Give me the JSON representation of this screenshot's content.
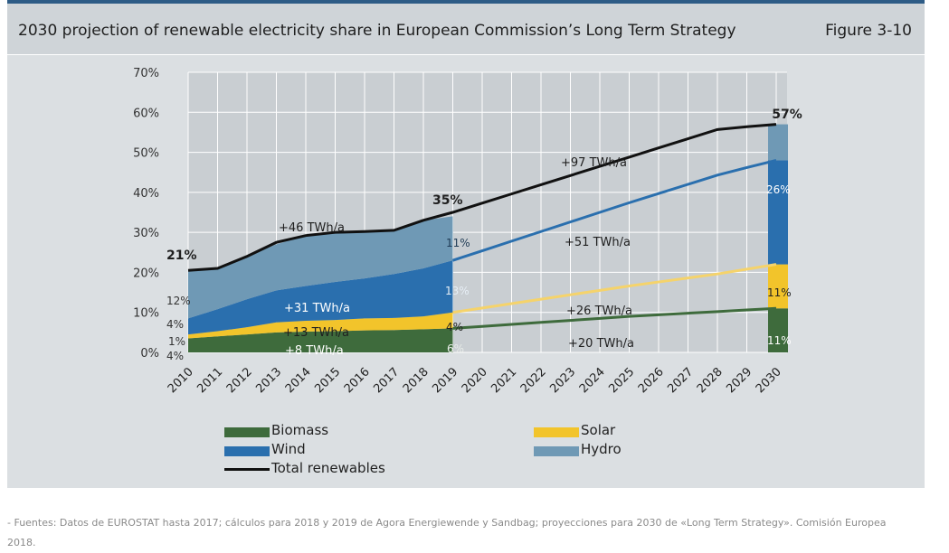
{
  "header": {
    "title": "2030 projection of renewable electricity share in European Commission’s Long Term Strategy",
    "figure": "Figure 3-10"
  },
  "colors": {
    "biomass": "#3e6b3c",
    "solar": "#f2c42b",
    "wind": "#2a6fae",
    "hydro": "#6f99b5",
    "total": "#111111",
    "wind_projection": "#2a6fae",
    "solar_projection": "#f5d36b",
    "biomass_projection": "#3e6b3c"
  },
  "chart_data": {
    "type": "area",
    "x": [
      "2010",
      "2011",
      "2012",
      "2013",
      "2014",
      "2015",
      "2016",
      "2017",
      "2018",
      "2019",
      "2020",
      "2021",
      "2022",
      "2023",
      "2024",
      "2025",
      "2026",
      "2027",
      "2028",
      "2029",
      "2030"
    ],
    "ylim": [
      0,
      70
    ],
    "yticks": [
      "0%",
      "10%",
      "20%",
      "30%",
      "40%",
      "50%",
      "60%",
      "70%"
    ],
    "grid": true,
    "legend_position": "bottom",
    "series": [
      {
        "name": "Biomass",
        "key": "biomass",
        "values": [
          3.5,
          4,
          4.5,
          5,
          5.2,
          5.3,
          5.5,
          5.6,
          5.8,
          6,
          6.5,
          7,
          7.5,
          8,
          8.5,
          9,
          9.4,
          9.8,
          10.2,
          10.6,
          11
        ]
      },
      {
        "name": "Solar",
        "key": "solar",
        "values": [
          1,
          1.3,
          1.8,
          2.5,
          2.7,
          2.8,
          3,
          3,
          3.2,
          4,
          4.6,
          5.2,
          5.8,
          6.4,
          7,
          7.6,
          8.2,
          8.8,
          9.4,
          10.2,
          11
        ]
      },
      {
        "name": "Wind",
        "key": "wind",
        "values": [
          4,
          5.5,
          7,
          8,
          8.7,
          9.5,
          10,
          11,
          12,
          13,
          14.3,
          15.6,
          16.9,
          18.2,
          19.5,
          20.8,
          22.1,
          23.4,
          24.7,
          25.4,
          26
        ]
      },
      {
        "name": "Hydro",
        "key": "hydro",
        "values": [
          12,
          10.2,
          10.7,
          11.5,
          12.6,
          12.4,
          11.7,
          10.9,
          12,
          11,
          11.1,
          11.2,
          11.3,
          11.4,
          11.5,
          11.5,
          11.4,
          11.3,
          11.2,
          9.8,
          9
        ]
      },
      {
        "name": "Total renewables",
        "key": "total",
        "values": [
          20.5,
          21,
          24,
          27.5,
          29.2,
          30,
          30.2,
          30.5,
          33,
          35,
          37.3,
          39.6,
          41.9,
          44.2,
          46.5,
          48.8,
          51.1,
          53.4,
          55.7,
          56.4,
          57
        ]
      }
    ],
    "labels": {
      "total_2010": "21%",
      "total_2019": "35%",
      "total_2030": "57%",
      "hydro_2010": "12%",
      "wind_2010": "4%",
      "solar_2010": "1%",
      "biomass_2010": "4%",
      "hydro_2019": "11%",
      "wind_2019": "13%",
      "solar_2019": "4%",
      "biomass_2019": "6%",
      "wind_2030": "26%",
      "solar_2030": "11%",
      "biomass_2030": "11%"
    },
    "annotations": {
      "hist_total": "+46 TWh/a",
      "hist_wind": "+31 TWh/a",
      "hist_solar": "+13 TWh/a",
      "hist_biomass": "+8 TWh/a",
      "proj_total": "+97 TWh/a",
      "proj_wind": "+51 TWh/a",
      "proj_solar": "+26 TWh/a",
      "proj_biomass": "+20 TWh/a"
    }
  },
  "legend": [
    {
      "key": "biomass",
      "label": "Biomass"
    },
    {
      "key": "solar",
      "label": "Solar"
    },
    {
      "key": "wind",
      "label": "Wind"
    },
    {
      "key": "hydro",
      "label": "Hydro"
    },
    {
      "key": "total",
      "label": "Total renewables"
    }
  ],
  "source": "- Fuentes: Datos de EUROSTAT hasta 2017; cálculos para 2018 y 2019 de Agora Energiewende y Sandbag; proyecciones para 2030 de «Long Term Strategy». Comisión Europea 2018."
}
